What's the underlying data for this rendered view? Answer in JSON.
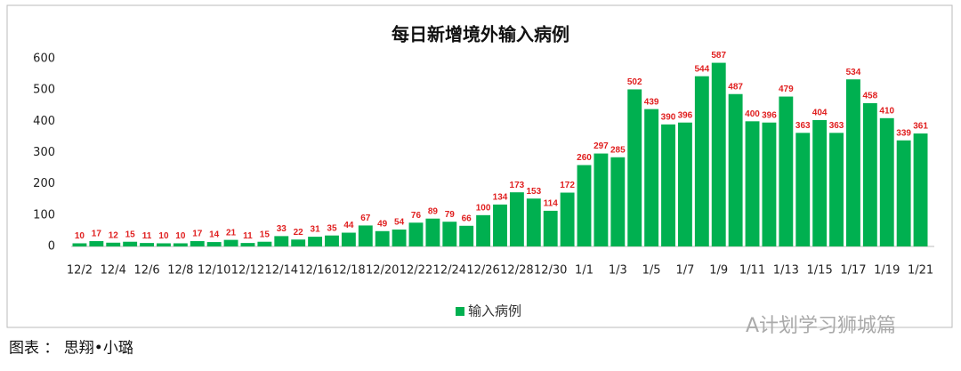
{
  "chart_data": {
    "type": "bar",
    "title": "每日新增境外输入病例",
    "categories": [
      "12/2",
      null,
      "12/4",
      null,
      "12/6",
      null,
      "12/8",
      null,
      "12/10",
      null,
      "12/12",
      null,
      "12/14",
      null,
      "12/16",
      null,
      "12/18",
      null,
      "12/20",
      null,
      "12/22",
      null,
      "12/24",
      null,
      "12/26",
      null,
      "12/28",
      null,
      "12/30",
      null,
      "1/1",
      null,
      "1/3",
      null,
      "1/5",
      null,
      "1/7",
      null,
      "1/9",
      null,
      "1/11",
      null,
      "1/13",
      null,
      "1/15",
      null,
      "1/17",
      null,
      "1/19",
      null,
      "1/21"
    ],
    "series": [
      {
        "name": "输入病例",
        "color": "#00b050",
        "values": [
          10,
          17,
          12,
          15,
          11,
          10,
          10,
          17,
          14,
          21,
          11,
          15,
          33,
          22,
          31,
          35,
          44,
          67,
          49,
          54,
          76,
          89,
          79,
          66,
          100,
          134,
          173,
          153,
          114,
          172,
          260,
          297,
          285,
          502,
          439,
          390,
          396,
          544,
          587,
          487,
          400,
          396,
          479,
          363,
          404,
          363,
          534,
          458,
          410,
          339,
          361
        ]
      }
    ],
    "ylim": [
      0,
      600
    ],
    "yticks": [
      0,
      100,
      200,
      300,
      400,
      500,
      600
    ],
    "grid": false,
    "legend": "bottom"
  },
  "caption": "图表 ： 思翔•小璐",
  "watermark": "A计划学习狮城篇"
}
